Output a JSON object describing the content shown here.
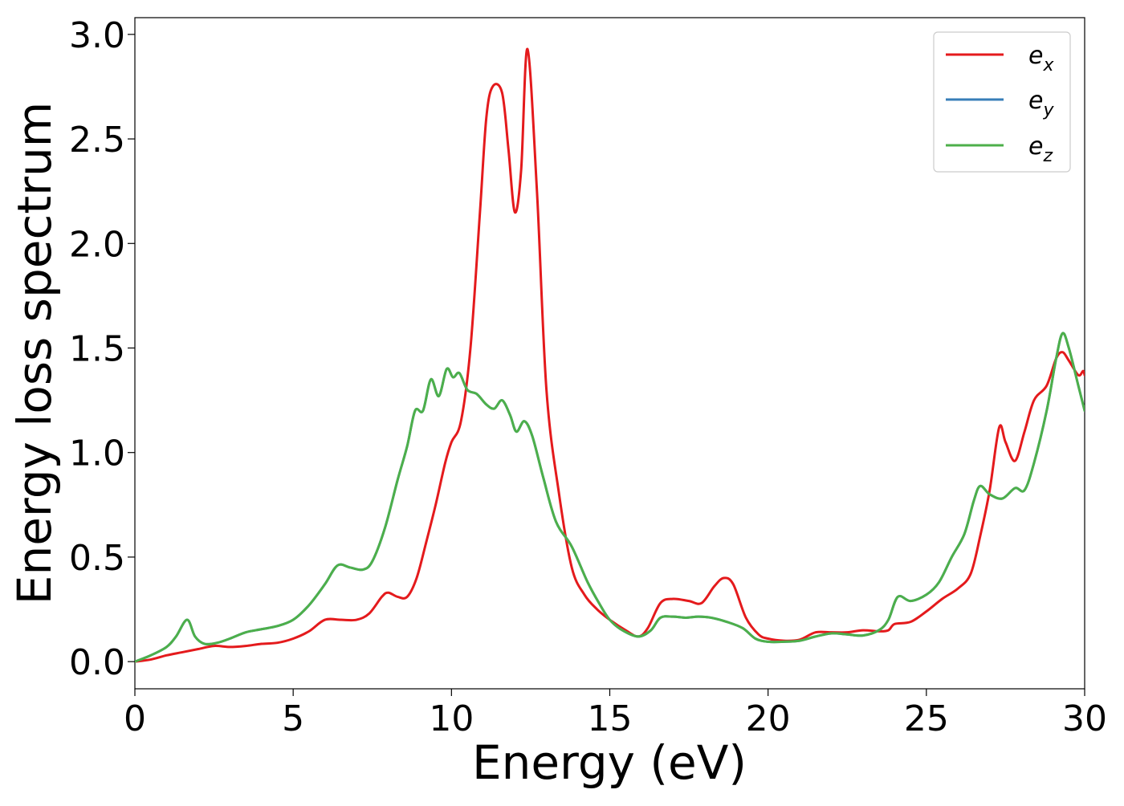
{
  "chart_data": {
    "type": "line",
    "title": "",
    "xlabel": "Energy (eV)",
    "ylabel": "Energy loss spectrum",
    "xlim": [
      0,
      30
    ],
    "ylim": [
      -0.13,
      3.08
    ],
    "x_ticks": [
      0,
      5,
      10,
      15,
      20,
      25,
      30
    ],
    "y_ticks": [
      0.0,
      0.5,
      1.0,
      1.5,
      2.0,
      2.5,
      3.0
    ],
    "x_tick_labels": [
      "0",
      "5",
      "10",
      "15",
      "20",
      "25",
      "30"
    ],
    "y_tick_labels": [
      "0.0",
      "0.5",
      "1.0",
      "1.5",
      "2.0",
      "2.5",
      "3.0"
    ],
    "grid": false,
    "legend_position": "top-right",
    "series": [
      {
        "name": "e",
        "subscript": "x",
        "color": "#e41a1c",
        "points": [
          [
            0,
            0.0
          ],
          [
            0.5,
            0.01
          ],
          [
            1.0,
            0.03
          ],
          [
            1.5,
            0.045
          ],
          [
            2.0,
            0.06
          ],
          [
            2.5,
            0.075
          ],
          [
            3.0,
            0.07
          ],
          [
            3.5,
            0.075
          ],
          [
            4.0,
            0.085
          ],
          [
            4.5,
            0.09
          ],
          [
            5.0,
            0.11
          ],
          [
            5.5,
            0.145
          ],
          [
            6.0,
            0.2
          ],
          [
            6.5,
            0.2
          ],
          [
            7.0,
            0.2
          ],
          [
            7.4,
            0.23
          ],
          [
            7.8,
            0.31
          ],
          [
            8.0,
            0.33
          ],
          [
            8.3,
            0.31
          ],
          [
            8.6,
            0.31
          ],
          [
            8.9,
            0.4
          ],
          [
            9.2,
            0.57
          ],
          [
            9.5,
            0.75
          ],
          [
            9.8,
            0.95
          ],
          [
            10.0,
            1.05
          ],
          [
            10.3,
            1.15
          ],
          [
            10.6,
            1.5
          ],
          [
            10.9,
            2.15
          ],
          [
            11.1,
            2.6
          ],
          [
            11.3,
            2.75
          ],
          [
            11.6,
            2.72
          ],
          [
            11.8,
            2.45
          ],
          [
            12.0,
            2.15
          ],
          [
            12.2,
            2.35
          ],
          [
            12.4,
            2.93
          ],
          [
            12.7,
            2.25
          ],
          [
            13.0,
            1.3
          ],
          [
            13.4,
            0.8
          ],
          [
            13.8,
            0.45
          ],
          [
            14.2,
            0.32
          ],
          [
            14.6,
            0.25
          ],
          [
            15.0,
            0.2
          ],
          [
            15.5,
            0.15
          ],
          [
            15.9,
            0.12
          ],
          [
            16.2,
            0.16
          ],
          [
            16.6,
            0.28
          ],
          [
            17.0,
            0.3
          ],
          [
            17.5,
            0.29
          ],
          [
            17.9,
            0.28
          ],
          [
            18.3,
            0.36
          ],
          [
            18.6,
            0.4
          ],
          [
            18.9,
            0.37
          ],
          [
            19.3,
            0.21
          ],
          [
            19.7,
            0.13
          ],
          [
            20.0,
            0.11
          ],
          [
            20.5,
            0.1
          ],
          [
            21.0,
            0.105
          ],
          [
            21.5,
            0.14
          ],
          [
            22.0,
            0.14
          ],
          [
            22.5,
            0.14
          ],
          [
            23.0,
            0.15
          ],
          [
            23.5,
            0.145
          ],
          [
            23.8,
            0.15
          ],
          [
            24.0,
            0.18
          ],
          [
            24.5,
            0.19
          ],
          [
            25.0,
            0.24
          ],
          [
            25.5,
            0.3
          ],
          [
            26.0,
            0.35
          ],
          [
            26.4,
            0.42
          ],
          [
            26.7,
            0.6
          ],
          [
            27.0,
            0.82
          ],
          [
            27.3,
            1.12
          ],
          [
            27.5,
            1.05
          ],
          [
            27.8,
            0.96
          ],
          [
            28.1,
            1.1
          ],
          [
            28.4,
            1.25
          ],
          [
            28.8,
            1.32
          ],
          [
            29.1,
            1.45
          ],
          [
            29.3,
            1.48
          ],
          [
            29.5,
            1.44
          ],
          [
            29.8,
            1.37
          ],
          [
            29.95,
            1.39
          ],
          [
            30.0,
            1.37
          ]
        ]
      },
      {
        "name": "e",
        "subscript": "y",
        "color": "#377eb8",
        "points": [
          [
            0,
            0.0
          ],
          [
            0.5,
            0.03
          ],
          [
            1.0,
            0.07
          ],
          [
            1.3,
            0.12
          ],
          [
            1.65,
            0.2
          ],
          [
            1.9,
            0.12
          ],
          [
            2.2,
            0.085
          ],
          [
            2.6,
            0.09
          ],
          [
            3.0,
            0.11
          ],
          [
            3.5,
            0.14
          ],
          [
            4.0,
            0.155
          ],
          [
            4.5,
            0.17
          ],
          [
            5.0,
            0.2
          ],
          [
            5.5,
            0.27
          ],
          [
            6.0,
            0.37
          ],
          [
            6.4,
            0.46
          ],
          [
            6.8,
            0.45
          ],
          [
            7.2,
            0.44
          ],
          [
            7.5,
            0.48
          ],
          [
            7.9,
            0.64
          ],
          [
            8.3,
            0.87
          ],
          [
            8.6,
            1.03
          ],
          [
            8.85,
            1.2
          ],
          [
            9.1,
            1.2
          ],
          [
            9.35,
            1.35
          ],
          [
            9.6,
            1.27
          ],
          [
            9.85,
            1.4
          ],
          [
            10.05,
            1.36
          ],
          [
            10.25,
            1.38
          ],
          [
            10.5,
            1.3
          ],
          [
            10.8,
            1.28
          ],
          [
            11.1,
            1.23
          ],
          [
            11.35,
            1.21
          ],
          [
            11.6,
            1.25
          ],
          [
            11.85,
            1.18
          ],
          [
            12.05,
            1.1
          ],
          [
            12.3,
            1.15
          ],
          [
            12.55,
            1.08
          ],
          [
            12.9,
            0.88
          ],
          [
            13.3,
            0.67
          ],
          [
            13.8,
            0.55
          ],
          [
            14.3,
            0.38
          ],
          [
            14.7,
            0.27
          ],
          [
            15.0,
            0.2
          ],
          [
            15.4,
            0.15
          ],
          [
            15.9,
            0.12
          ],
          [
            16.3,
            0.15
          ],
          [
            16.6,
            0.21
          ],
          [
            17.0,
            0.215
          ],
          [
            17.4,
            0.21
          ],
          [
            17.8,
            0.215
          ],
          [
            18.2,
            0.21
          ],
          [
            18.7,
            0.19
          ],
          [
            19.2,
            0.16
          ],
          [
            19.6,
            0.11
          ],
          [
            20.0,
            0.095
          ],
          [
            20.5,
            0.095
          ],
          [
            21.0,
            0.1
          ],
          [
            21.5,
            0.12
          ],
          [
            22.0,
            0.135
          ],
          [
            22.5,
            0.13
          ],
          [
            23.0,
            0.125
          ],
          [
            23.5,
            0.15
          ],
          [
            23.8,
            0.2
          ],
          [
            24.1,
            0.31
          ],
          [
            24.5,
            0.29
          ],
          [
            25.0,
            0.32
          ],
          [
            25.4,
            0.38
          ],
          [
            25.8,
            0.5
          ],
          [
            26.2,
            0.61
          ],
          [
            26.5,
            0.77
          ],
          [
            26.7,
            0.84
          ],
          [
            27.0,
            0.8
          ],
          [
            27.4,
            0.78
          ],
          [
            27.8,
            0.83
          ],
          [
            28.1,
            0.82
          ],
          [
            28.4,
            0.95
          ],
          [
            28.8,
            1.2
          ],
          [
            29.1,
            1.45
          ],
          [
            29.3,
            1.57
          ],
          [
            29.5,
            1.5
          ],
          [
            29.8,
            1.32
          ],
          [
            30.0,
            1.2
          ]
        ]
      },
      {
        "name": "e",
        "subscript": "z",
        "color": "#4daf4a",
        "points": [
          [
            0,
            0.0
          ],
          [
            0.5,
            0.03
          ],
          [
            1.0,
            0.07
          ],
          [
            1.3,
            0.12
          ],
          [
            1.65,
            0.2
          ],
          [
            1.9,
            0.12
          ],
          [
            2.2,
            0.085
          ],
          [
            2.6,
            0.09
          ],
          [
            3.0,
            0.11
          ],
          [
            3.5,
            0.14
          ],
          [
            4.0,
            0.155
          ],
          [
            4.5,
            0.17
          ],
          [
            5.0,
            0.2
          ],
          [
            5.5,
            0.27
          ],
          [
            6.0,
            0.37
          ],
          [
            6.4,
            0.46
          ],
          [
            6.8,
            0.45
          ],
          [
            7.2,
            0.44
          ],
          [
            7.5,
            0.48
          ],
          [
            7.9,
            0.64
          ],
          [
            8.3,
            0.87
          ],
          [
            8.6,
            1.03
          ],
          [
            8.85,
            1.2
          ],
          [
            9.1,
            1.2
          ],
          [
            9.35,
            1.35
          ],
          [
            9.6,
            1.27
          ],
          [
            9.85,
            1.4
          ],
          [
            10.05,
            1.36
          ],
          [
            10.25,
            1.38
          ],
          [
            10.5,
            1.3
          ],
          [
            10.8,
            1.28
          ],
          [
            11.1,
            1.23
          ],
          [
            11.35,
            1.21
          ],
          [
            11.6,
            1.25
          ],
          [
            11.85,
            1.18
          ],
          [
            12.05,
            1.1
          ],
          [
            12.3,
            1.15
          ],
          [
            12.55,
            1.08
          ],
          [
            12.9,
            0.88
          ],
          [
            13.3,
            0.67
          ],
          [
            13.8,
            0.55
          ],
          [
            14.3,
            0.38
          ],
          [
            14.7,
            0.27
          ],
          [
            15.0,
            0.2
          ],
          [
            15.4,
            0.15
          ],
          [
            15.9,
            0.12
          ],
          [
            16.3,
            0.15
          ],
          [
            16.6,
            0.21
          ],
          [
            17.0,
            0.215
          ],
          [
            17.4,
            0.21
          ],
          [
            17.8,
            0.215
          ],
          [
            18.2,
            0.21
          ],
          [
            18.7,
            0.19
          ],
          [
            19.2,
            0.16
          ],
          [
            19.6,
            0.11
          ],
          [
            20.0,
            0.095
          ],
          [
            20.5,
            0.095
          ],
          [
            21.0,
            0.1
          ],
          [
            21.5,
            0.12
          ],
          [
            22.0,
            0.135
          ],
          [
            22.5,
            0.13
          ],
          [
            23.0,
            0.125
          ],
          [
            23.5,
            0.15
          ],
          [
            23.8,
            0.2
          ],
          [
            24.1,
            0.31
          ],
          [
            24.5,
            0.29
          ],
          [
            25.0,
            0.32
          ],
          [
            25.4,
            0.38
          ],
          [
            25.8,
            0.5
          ],
          [
            26.2,
            0.61
          ],
          [
            26.5,
            0.77
          ],
          [
            26.7,
            0.84
          ],
          [
            27.0,
            0.8
          ],
          [
            27.4,
            0.78
          ],
          [
            27.8,
            0.83
          ],
          [
            28.1,
            0.82
          ],
          [
            28.4,
            0.95
          ],
          [
            28.8,
            1.2
          ],
          [
            29.1,
            1.45
          ],
          [
            29.3,
            1.57
          ],
          [
            29.5,
            1.5
          ],
          [
            29.8,
            1.32
          ],
          [
            30.0,
            1.2
          ]
        ]
      }
    ]
  }
}
